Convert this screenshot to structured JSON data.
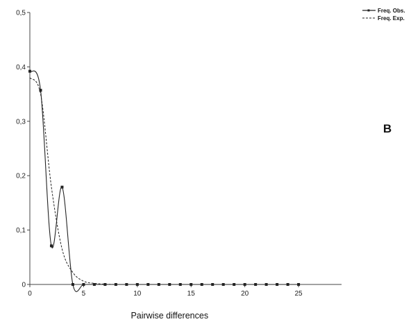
{
  "chart_data": {
    "type": "line",
    "xlabel": "Pairwise differences",
    "ylabel": "",
    "xlim": [
      0,
      29
    ],
    "ylim": [
      0,
      0.5
    ],
    "x_ticks": [
      "0",
      "5",
      "10",
      "15",
      "20",
      "25"
    ],
    "y_ticks": [
      "0",
      "0,1",
      "0,2",
      "0,3",
      "0,4",
      "0,5"
    ],
    "grid": false,
    "legend_position": "top-right",
    "panel_label": "B",
    "series": [
      {
        "name": "Freq. Obs.",
        "style": "solid-with-markers",
        "color": "#222222",
        "x": [
          0,
          1,
          2,
          3,
          4,
          5,
          6,
          7,
          8,
          9,
          10,
          11,
          12,
          13,
          14,
          15,
          16,
          17,
          18,
          19,
          20,
          21,
          22,
          23,
          24,
          25
        ],
        "y": [
          0.392,
          0.357,
          0.071,
          0.179,
          0.0,
          0.0,
          0.0,
          0.0,
          0.0,
          0.0,
          0.0,
          0.0,
          0.0,
          0.0,
          0.0,
          0.0,
          0.0,
          0.0,
          0.0,
          0.0,
          0.0,
          0.0,
          0.0,
          0.0,
          0.0,
          0.0
        ]
      },
      {
        "name": "Freq. Exp.",
        "style": "dashed",
        "color": "#222222",
        "x": [
          0,
          1,
          2,
          3,
          4,
          5,
          6,
          7,
          8
        ],
        "y": [
          0.38,
          0.35,
          0.18,
          0.065,
          0.022,
          0.006,
          0.002,
          0.0005,
          0.0
        ]
      }
    ]
  }
}
